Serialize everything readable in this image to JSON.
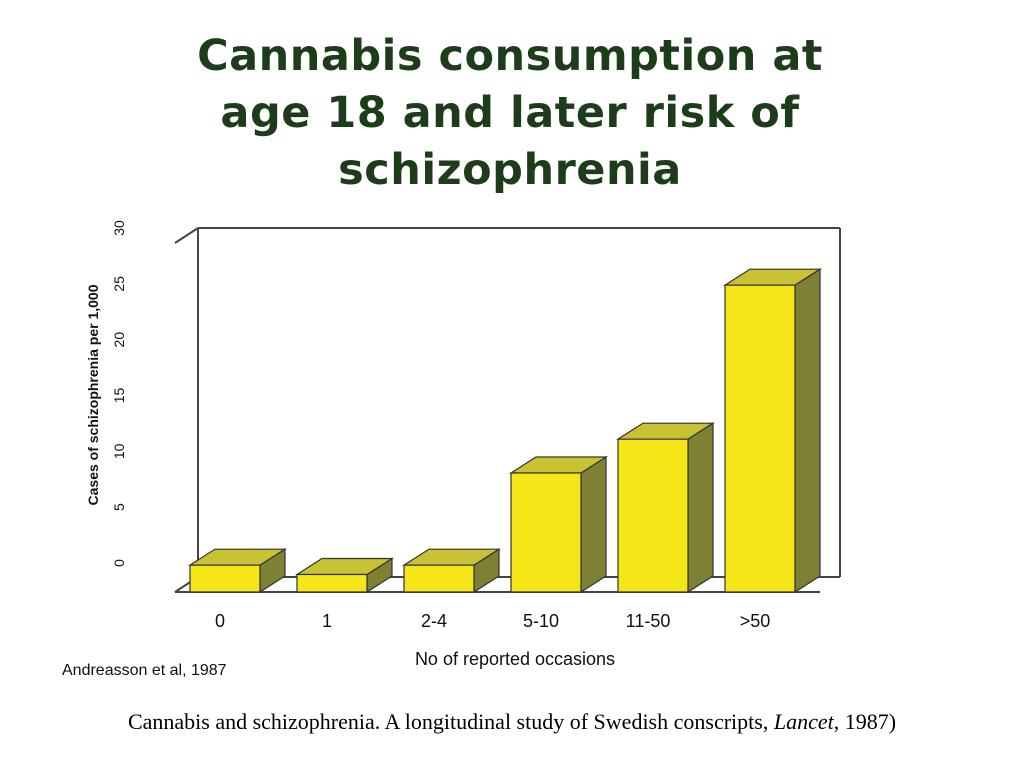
{
  "title_lines": [
    "Cannabis consumption at",
    "age 18 and later risk of",
    "schizophrenia"
  ],
  "source": "Andreasson et al, 1987",
  "caption": {
    "before": "Cannabis and schizophrenia. A longitudinal study of Swedish conscripts, ",
    "journal": "Lancet",
    "after": ", 1987)"
  },
  "colors": {
    "bar_front": "#f5e617",
    "bar_top": "#c8c234",
    "bar_side": "#7e8034",
    "title": "#1d3d1a"
  },
  "chart_data": {
    "type": "bar",
    "title": "Cannabis consumption at age 18 and later risk of schizophrenia",
    "categories": [
      "0",
      "1",
      "2-4",
      "5-10",
      "11-50",
      ">50"
    ],
    "values": [
      2.3,
      1.5,
      2.3,
      10.2,
      13.1,
      26.3
    ],
    "xlabel": "No of reported occasions",
    "ylabel": "Cases of schizophrenia per 1,000",
    "ylim": [
      0,
      30
    ],
    "yticks": [
      0,
      5,
      10,
      15,
      20,
      25,
      30
    ],
    "grid": false,
    "legend": "none"
  }
}
